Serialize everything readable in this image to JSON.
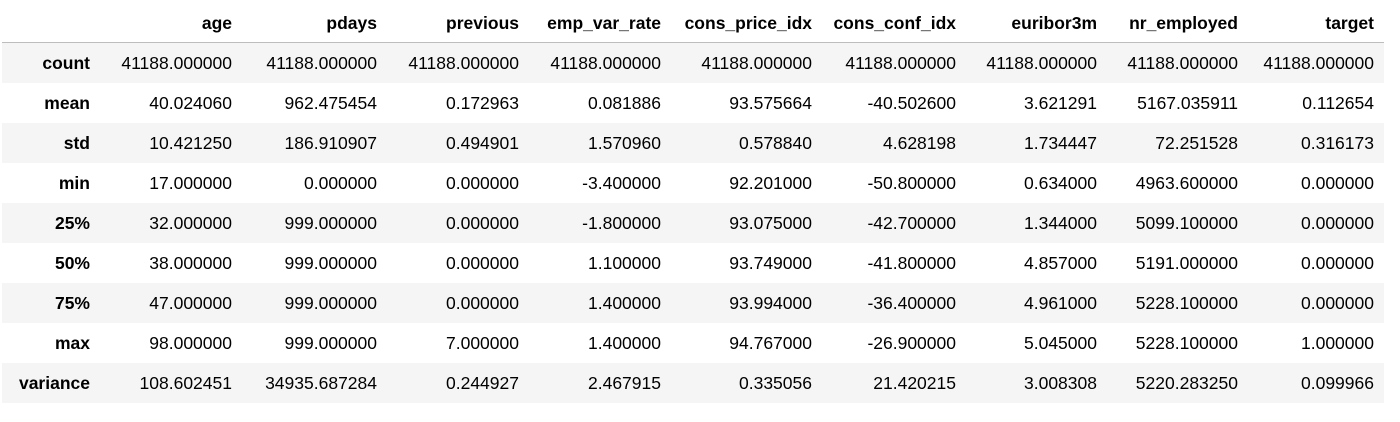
{
  "table": {
    "columns": [
      "",
      "age",
      "pdays",
      "previous",
      "emp_var_rate",
      "cons_price_idx",
      "cons_conf_idx",
      "euribor3m",
      "nr_employed",
      "target"
    ],
    "rows": [
      {
        "label": "count",
        "values": [
          "41188.000000",
          "41188.000000",
          "41188.000000",
          "41188.000000",
          "41188.000000",
          "41188.000000",
          "41188.000000",
          "41188.000000",
          "41188.000000"
        ]
      },
      {
        "label": "mean",
        "values": [
          "40.024060",
          "962.475454",
          "0.172963",
          "0.081886",
          "93.575664",
          "-40.502600",
          "3.621291",
          "5167.035911",
          "0.112654"
        ]
      },
      {
        "label": "std",
        "values": [
          "10.421250",
          "186.910907",
          "0.494901",
          "1.570960",
          "0.578840",
          "4.628198",
          "1.734447",
          "72.251528",
          "0.316173"
        ]
      },
      {
        "label": "min",
        "values": [
          "17.000000",
          "0.000000",
          "0.000000",
          "-3.400000",
          "92.201000",
          "-50.800000",
          "0.634000",
          "4963.600000",
          "0.000000"
        ]
      },
      {
        "label": "25%",
        "values": [
          "32.000000",
          "999.000000",
          "0.000000",
          "-1.800000",
          "93.075000",
          "-42.700000",
          "1.344000",
          "5099.100000",
          "0.000000"
        ]
      },
      {
        "label": "50%",
        "values": [
          "38.000000",
          "999.000000",
          "0.000000",
          "1.100000",
          "93.749000",
          "-41.800000",
          "4.857000",
          "5191.000000",
          "0.000000"
        ]
      },
      {
        "label": "75%",
        "values": [
          "47.000000",
          "999.000000",
          "0.000000",
          "1.400000",
          "93.994000",
          "-36.400000",
          "4.961000",
          "5228.100000",
          "0.000000"
        ]
      },
      {
        "label": "max",
        "values": [
          "98.000000",
          "999.000000",
          "7.000000",
          "1.400000",
          "94.767000",
          "-26.900000",
          "5.045000",
          "5228.100000",
          "1.000000"
        ]
      },
      {
        "label": "variance",
        "values": [
          "108.602451",
          "34935.687284",
          "0.244927",
          "2.467915",
          "0.335056",
          "21.420215",
          "3.008308",
          "5220.283250",
          "0.099966"
        ]
      }
    ]
  }
}
